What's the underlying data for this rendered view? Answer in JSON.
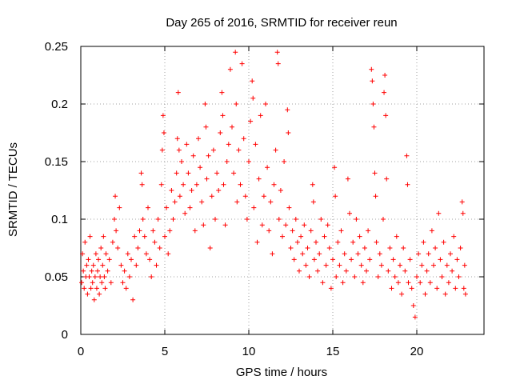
{
  "chart_data": {
    "type": "scatter",
    "title": "Day 265 of 2016, SRMTID for receiver reun",
    "xlabel": "GPS time / hours",
    "ylabel": "SRMTID / TECUs",
    "xlim": [
      0,
      24
    ],
    "ylim": [
      0,
      0.25
    ],
    "xticks": [
      0,
      5,
      10,
      15,
      20
    ],
    "xtick_labels": [
      "0",
      "5",
      "10",
      "15",
      "20"
    ],
    "yticks": [
      0,
      0.05,
      0.1,
      0.15,
      0.2,
      0.25
    ],
    "ytick_labels": [
      "0",
      "0.05",
      "0.1",
      "0.15",
      "0.2",
      "0.25"
    ],
    "grid": true,
    "marker": "plus",
    "marker_color": "#ff0000",
    "series": [
      {
        "name": "SRMTID",
        "points": [
          [
            0.05,
            0.045
          ],
          [
            0.1,
            0.07
          ],
          [
            0.15,
            0.055
          ],
          [
            0.2,
            0.04
          ],
          [
            0.25,
            0.08
          ],
          [
            0.3,
            0.05
          ],
          [
            0.35,
            0.06
          ],
          [
            0.4,
            0.035
          ],
          [
            0.45,
            0.065
          ],
          [
            0.5,
            0.05
          ],
          [
            0.55,
            0.085
          ],
          [
            0.6,
            0.04
          ],
          [
            0.65,
            0.055
          ],
          [
            0.7,
            0.045
          ],
          [
            0.75,
            0.06
          ],
          [
            0.8,
            0.03
          ],
          [
            0.85,
            0.05
          ],
          [
            0.9,
            0.07
          ],
          [
            0.95,
            0.04
          ],
          [
            1.0,
            0.055
          ],
          [
            1.05,
            0.065
          ],
          [
            1.1,
            0.035
          ],
          [
            1.15,
            0.05
          ],
          [
            1.2,
            0.075
          ],
          [
            1.25,
            0.045
          ],
          [
            1.3,
            0.06
          ],
          [
            1.35,
            0.085
          ],
          [
            1.4,
            0.05
          ],
          [
            1.45,
            0.04
          ],
          [
            1.5,
            0.07
          ],
          [
            1.6,
            0.055
          ],
          [
            1.7,
            0.065
          ],
          [
            1.8,
            0.045
          ],
          [
            1.9,
            0.08
          ],
          [
            2.0,
            0.1
          ],
          [
            2.05,
            0.12
          ],
          [
            2.1,
            0.09
          ],
          [
            2.2,
            0.075
          ],
          [
            2.3,
            0.11
          ],
          [
            2.4,
            0.06
          ],
          [
            2.5,
            0.045
          ],
          [
            2.6,
            0.055
          ],
          [
            2.7,
            0.04
          ],
          [
            2.8,
            0.07
          ],
          [
            2.9,
            0.05
          ],
          [
            3.0,
            0.065
          ],
          [
            3.1,
            0.03
          ],
          [
            3.2,
            0.085
          ],
          [
            3.3,
            0.06
          ],
          [
            3.4,
            0.075
          ],
          [
            3.5,
            0.09
          ],
          [
            3.6,
            0.14
          ],
          [
            3.65,
            0.13
          ],
          [
            3.7,
            0.1
          ],
          [
            3.8,
            0.085
          ],
          [
            3.9,
            0.07
          ],
          [
            4.0,
            0.11
          ],
          [
            4.1,
            0.065
          ],
          [
            4.2,
            0.05
          ],
          [
            4.3,
            0.09
          ],
          [
            4.4,
            0.08
          ],
          [
            4.5,
            0.06
          ],
          [
            4.6,
            0.1
          ],
          [
            4.7,
            0.075
          ],
          [
            4.8,
            0.13
          ],
          [
            4.85,
            0.16
          ],
          [
            4.9,
            0.19
          ],
          [
            4.95,
            0.175
          ],
          [
            5.0,
            0.085
          ],
          [
            5.1,
            0.11
          ],
          [
            5.2,
            0.07
          ],
          [
            5.3,
            0.09
          ],
          [
            5.4,
            0.125
          ],
          [
            5.5,
            0.1
          ],
          [
            5.6,
            0.115
          ],
          [
            5.7,
            0.14
          ],
          [
            5.75,
            0.17
          ],
          [
            5.8,
            0.21
          ],
          [
            5.85,
            0.16
          ],
          [
            5.9,
            0.12
          ],
          [
            6.0,
            0.15
          ],
          [
            6.1,
            0.13
          ],
          [
            6.2,
            0.105
          ],
          [
            6.3,
            0.165
          ],
          [
            6.4,
            0.14
          ],
          [
            6.5,
            0.11
          ],
          [
            6.6,
            0.125
          ],
          [
            6.7,
            0.155
          ],
          [
            6.8,
            0.09
          ],
          [
            6.9,
            0.13
          ],
          [
            7.0,
            0.17
          ],
          [
            7.1,
            0.145
          ],
          [
            7.2,
            0.115
          ],
          [
            7.3,
            0.095
          ],
          [
            7.4,
            0.2
          ],
          [
            7.45,
            0.18
          ],
          [
            7.5,
            0.135
          ],
          [
            7.6,
            0.155
          ],
          [
            7.7,
            0.075
          ],
          [
            7.8,
            0.12
          ],
          [
            7.9,
            0.16
          ],
          [
            8.0,
            0.1
          ],
          [
            8.1,
            0.14
          ],
          [
            8.2,
            0.125
          ],
          [
            8.3,
            0.175
          ],
          [
            8.4,
            0.21
          ],
          [
            8.45,
            0.19
          ],
          [
            8.5,
            0.13
          ],
          [
            8.6,
            0.095
          ],
          [
            8.7,
            0.15
          ],
          [
            8.8,
            0.165
          ],
          [
            8.9,
            0.23
          ],
          [
            9.0,
            0.18
          ],
          [
            9.1,
            0.14
          ],
          [
            9.2,
            0.245
          ],
          [
            9.25,
            0.2
          ],
          [
            9.3,
            0.115
          ],
          [
            9.4,
            0.16
          ],
          [
            9.5,
            0.13
          ],
          [
            9.6,
            0.235
          ],
          [
            9.7,
            0.17
          ],
          [
            9.8,
            0.12
          ],
          [
            9.9,
            0.1
          ],
          [
            10.0,
            0.15
          ],
          [
            10.1,
            0.185
          ],
          [
            10.2,
            0.22
          ],
          [
            10.25,
            0.205
          ],
          [
            10.3,
            0.11
          ],
          [
            10.4,
            0.165
          ],
          [
            10.5,
            0.08
          ],
          [
            10.6,
            0.135
          ],
          [
            10.7,
            0.19
          ],
          [
            10.8,
            0.095
          ],
          [
            10.9,
            0.12
          ],
          [
            11.0,
            0.2
          ],
          [
            11.1,
            0.145
          ],
          [
            11.2,
            0.09
          ],
          [
            11.3,
            0.115
          ],
          [
            11.4,
            0.07
          ],
          [
            11.5,
            0.13
          ],
          [
            11.6,
            0.16
          ],
          [
            11.7,
            0.245
          ],
          [
            11.75,
            0.235
          ],
          [
            11.8,
            0.1
          ],
          [
            11.9,
            0.125
          ],
          [
            12.0,
            0.085
          ],
          [
            12.1,
            0.15
          ],
          [
            12.2,
            0.095
          ],
          [
            12.3,
            0.195
          ],
          [
            12.35,
            0.175
          ],
          [
            12.4,
            0.11
          ],
          [
            12.5,
            0.075
          ],
          [
            12.6,
            0.09
          ],
          [
            12.7,
            0.065
          ],
          [
            12.8,
            0.1
          ],
          [
            12.9,
            0.08
          ],
          [
            13.0,
            0.055
          ],
          [
            13.1,
            0.085
          ],
          [
            13.2,
            0.07
          ],
          [
            13.3,
            0.095
          ],
          [
            13.4,
            0.06
          ],
          [
            13.5,
            0.075
          ],
          [
            13.6,
            0.05
          ],
          [
            13.7,
            0.09
          ],
          [
            13.8,
            0.13
          ],
          [
            13.85,
            0.115
          ],
          [
            13.9,
            0.065
          ],
          [
            14.0,
            0.08
          ],
          [
            14.1,
            0.055
          ],
          [
            14.2,
            0.07
          ],
          [
            14.3,
            0.1
          ],
          [
            14.4,
            0.045
          ],
          [
            14.5,
            0.085
          ],
          [
            14.6,
            0.06
          ],
          [
            14.7,
            0.095
          ],
          [
            14.8,
            0.075
          ],
          [
            14.9,
            0.04
          ],
          [
            15.0,
            0.065
          ],
          [
            15.1,
            0.145
          ],
          [
            15.15,
            0.12
          ],
          [
            15.2,
            0.05
          ],
          [
            15.3,
            0.08
          ],
          [
            15.4,
            0.06
          ],
          [
            15.5,
            0.09
          ],
          [
            15.6,
            0.045
          ],
          [
            15.7,
            0.07
          ],
          [
            15.8,
            0.055
          ],
          [
            15.9,
            0.135
          ],
          [
            16.0,
            0.105
          ],
          [
            16.1,
            0.065
          ],
          [
            16.2,
            0.08
          ],
          [
            16.3,
            0.05
          ],
          [
            16.4,
            0.1
          ],
          [
            16.5,
            0.07
          ],
          [
            16.6,
            0.085
          ],
          [
            16.7,
            0.06
          ],
          [
            16.8,
            0.045
          ],
          [
            16.9,
            0.075
          ],
          [
            17.0,
            0.055
          ],
          [
            17.1,
            0.09
          ],
          [
            17.2,
            0.065
          ],
          [
            17.3,
            0.23
          ],
          [
            17.35,
            0.22
          ],
          [
            17.4,
            0.2
          ],
          [
            17.45,
            0.18
          ],
          [
            17.5,
            0.14
          ],
          [
            17.55,
            0.12
          ],
          [
            17.6,
            0.08
          ],
          [
            17.7,
            0.05
          ],
          [
            17.8,
            0.07
          ],
          [
            17.9,
            0.06
          ],
          [
            18.0,
            0.1
          ],
          [
            18.05,
            0.21
          ],
          [
            18.1,
            0.225
          ],
          [
            18.15,
            0.19
          ],
          [
            18.2,
            0.135
          ],
          [
            18.3,
            0.055
          ],
          [
            18.4,
            0.075
          ],
          [
            18.5,
            0.04
          ],
          [
            18.6,
            0.065
          ],
          [
            18.7,
            0.05
          ],
          [
            18.8,
            0.085
          ],
          [
            18.9,
            0.045
          ],
          [
            19.0,
            0.06
          ],
          [
            19.1,
            0.035
          ],
          [
            19.2,
            0.075
          ],
          [
            19.3,
            0.055
          ],
          [
            19.4,
            0.155
          ],
          [
            19.45,
            0.13
          ],
          [
            19.5,
            0.045
          ],
          [
            19.6,
            0.065
          ],
          [
            19.7,
            0.04
          ],
          [
            19.8,
            0.025
          ],
          [
            19.9,
            0.015
          ],
          [
            20.0,
            0.05
          ],
          [
            20.1,
            0.07
          ],
          [
            20.2,
            0.045
          ],
          [
            20.3,
            0.06
          ],
          [
            20.4,
            0.08
          ],
          [
            20.5,
            0.035
          ],
          [
            20.6,
            0.055
          ],
          [
            20.7,
            0.07
          ],
          [
            20.8,
            0.045
          ],
          [
            20.9,
            0.09
          ],
          [
            21.0,
            0.06
          ],
          [
            21.1,
            0.075
          ],
          [
            21.2,
            0.04
          ],
          [
            21.3,
            0.105
          ],
          [
            21.4,
            0.065
          ],
          [
            21.5,
            0.05
          ],
          [
            21.6,
            0.08
          ],
          [
            21.7,
            0.035
          ],
          [
            21.8,
            0.06
          ],
          [
            21.9,
            0.045
          ],
          [
            22.0,
            0.07
          ],
          [
            22.1,
            0.055
          ],
          [
            22.2,
            0.085
          ],
          [
            22.3,
            0.04
          ],
          [
            22.4,
            0.065
          ],
          [
            22.5,
            0.05
          ],
          [
            22.6,
            0.075
          ],
          [
            22.7,
            0.115
          ],
          [
            22.75,
            0.105
          ],
          [
            22.8,
            0.04
          ],
          [
            22.85,
            0.06
          ],
          [
            22.9,
            0.035
          ]
        ]
      }
    ]
  }
}
